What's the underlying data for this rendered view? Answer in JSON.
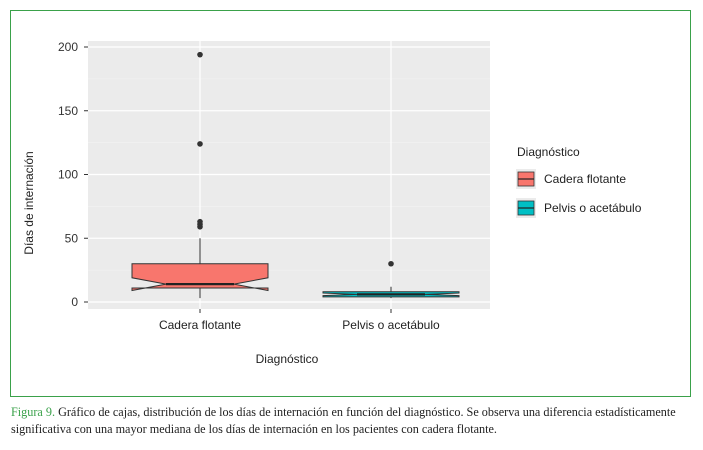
{
  "chart_data": {
    "type": "boxplot",
    "xlabel": "Diagnóstico",
    "ylabel": "Días de internación",
    "ylim": [
      -5,
      200
    ],
    "yticks": [
      0,
      50,
      100,
      150,
      200
    ],
    "categories": [
      "Cadera flotante",
      "Pelvis o acetábulo"
    ],
    "boxes": [
      {
        "category": "Cadera flotante",
        "min": 3,
        "q1": 11,
        "median": 14,
        "q3": 30,
        "max": 50,
        "notch_low": 9,
        "notch_high": 19,
        "outliers": [
          59,
          61,
          63,
          124,
          194
        ],
        "color": "#f8766d"
      },
      {
        "category": "Pelvis o acetábulo",
        "min": 3,
        "q1": 4,
        "median": 6,
        "q3": 8,
        "max": 12,
        "notch_low": 5,
        "notch_high": 7,
        "outliers": [
          30
        ],
        "color": "#00bfc4"
      }
    ],
    "legend": {
      "title": "Diagnóstico",
      "position": "right",
      "entries": [
        "Cadera flotante",
        "Pelvis o acetábulo"
      ]
    },
    "grid": true,
    "panel_background": "#ebebeb"
  },
  "caption": {
    "label": "Figura 9.",
    "text": "Gráfico de cajas, distribución de los días de internación en función del diagnóstico. Se observa una diferencia estadísticamente significativa con una mayor mediana de los días de internación en los pacientes con cadera flotante."
  },
  "colors": {
    "frame": "#3aa14a",
    "caption_label": "#3aa14a"
  }
}
